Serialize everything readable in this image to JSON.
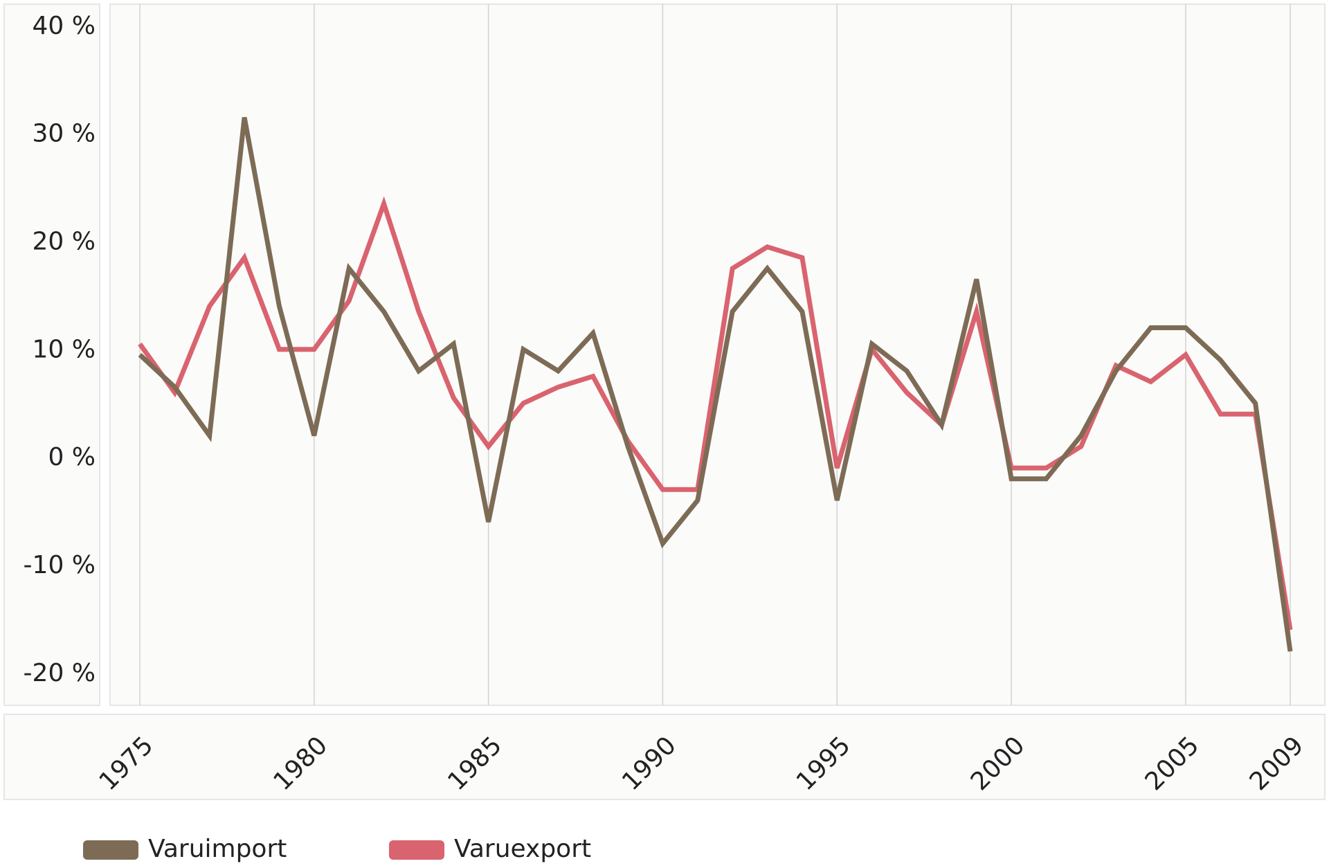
{
  "chart_data": {
    "type": "line",
    "categories": [
      "1975",
      null,
      null,
      null,
      null,
      "1980",
      null,
      null,
      null,
      null,
      "1985",
      null,
      null,
      null,
      null,
      "1990",
      null,
      null,
      null,
      null,
      "1995",
      null,
      null,
      null,
      null,
      "2000",
      null,
      null,
      null,
      null,
      "2005",
      null,
      null,
      "2009"
    ],
    "series": [
      {
        "name": "Varuimport",
        "color": "#7d6b55",
        "values": [
          10.5,
          7.5,
          3,
          32.5,
          15,
          3,
          18.5,
          14.5,
          9,
          11.5,
          -5,
          11,
          9,
          12.5,
          2,
          -7,
          -3,
          14.5,
          18.5,
          14.5,
          -3,
          11.5,
          9,
          4,
          17.5,
          -1,
          -1,
          3,
          9,
          13,
          13,
          10,
          6,
          -17
        ]
      },
      {
        "name": "Varuexport",
        "color": "#d9636e",
        "values": [
          11.5,
          7,
          15,
          19.5,
          11,
          11,
          15.5,
          24.5,
          14.5,
          6.5,
          2,
          6,
          7.5,
          8.5,
          2.5,
          -2,
          -2,
          18.5,
          20.5,
          19.5,
          0,
          11,
          7,
          4,
          14.5,
          0,
          0,
          2,
          9.5,
          8,
          10.5,
          5,
          5,
          -15
        ]
      }
    ],
    "ylim": [
      -22,
      43
    ],
    "yticks": [
      {
        "value": -20,
        "label": "-20 %"
      },
      {
        "value": -10,
        "label": "-10 %"
      },
      {
        "value": 0,
        "label": "0 %"
      },
      {
        "value": 10,
        "label": "10 %"
      },
      {
        "value": 20,
        "label": "20 %"
      },
      {
        "value": 30,
        "label": "30 %"
      },
      {
        "value": 40,
        "label": "40 %"
      }
    ],
    "grid": true
  }
}
